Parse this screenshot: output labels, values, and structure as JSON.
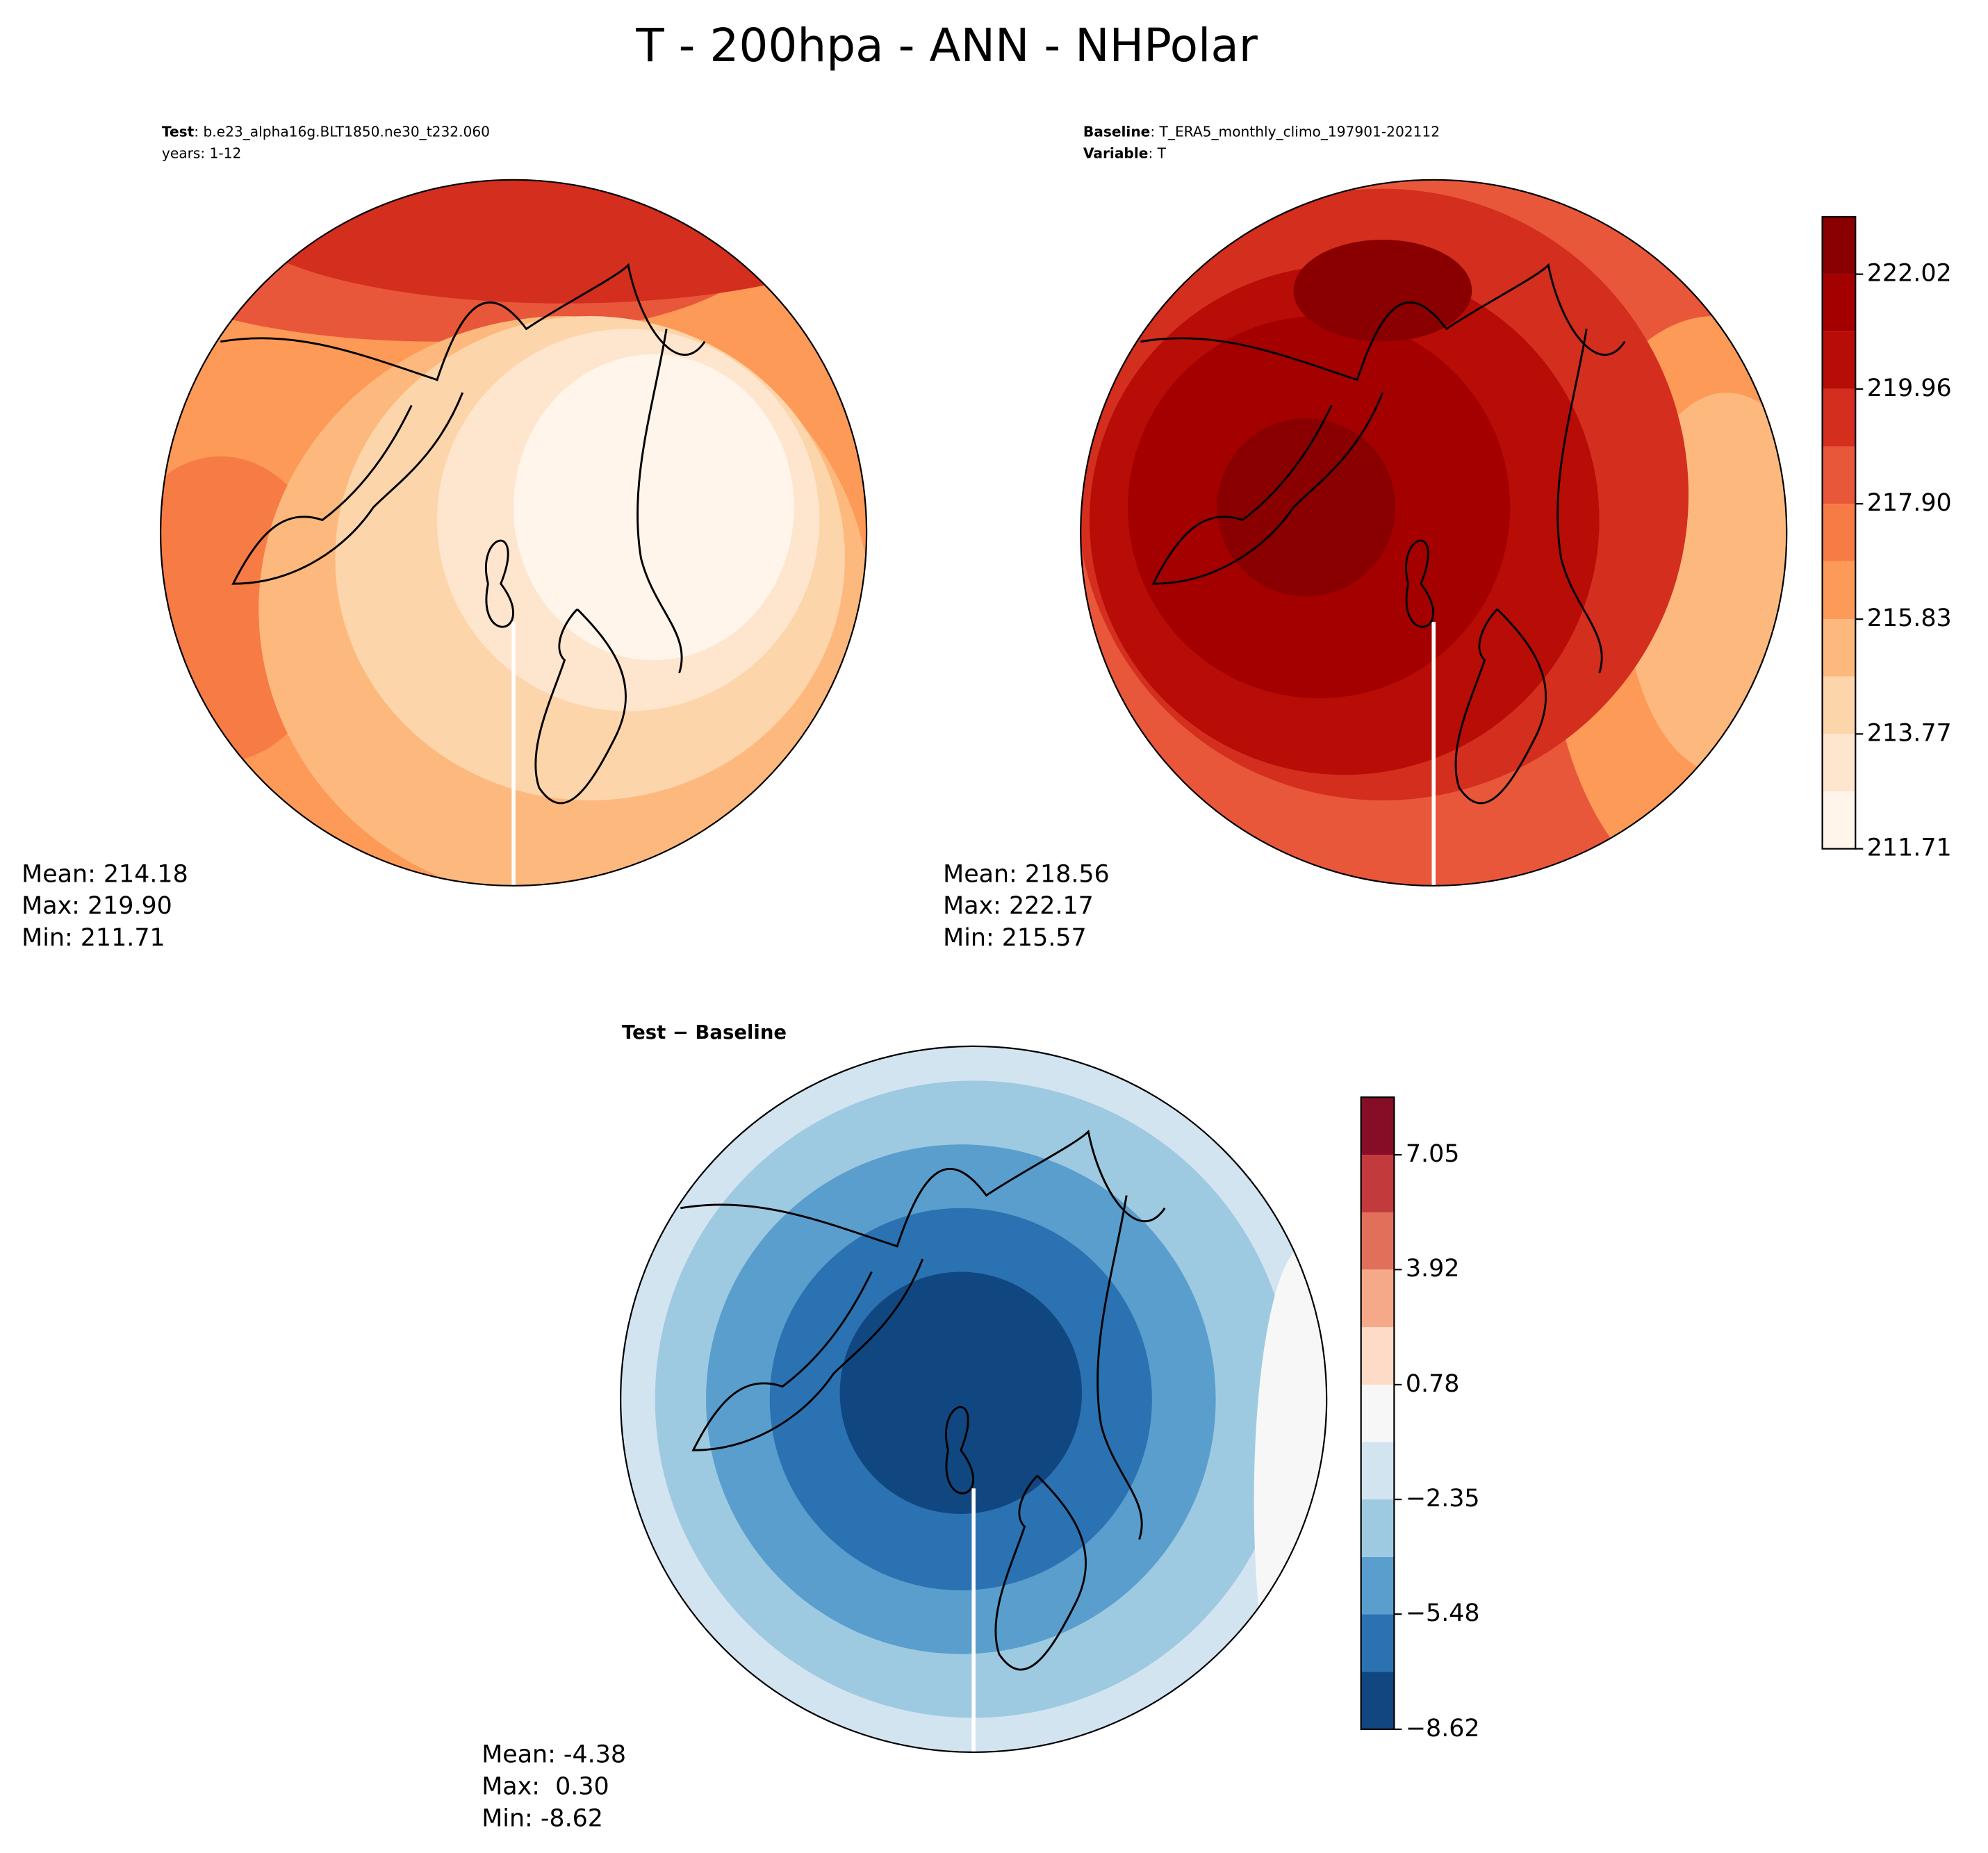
{
  "title": "T - 200hpa - ANN - NHPolar",
  "panels": [
    {
      "header": [
        {
          "label": "Test",
          "text": ": b.e23_alpha16g.BLT1850.ne30_t232.060"
        },
        {
          "label": "",
          "text": "years: 1-12"
        }
      ],
      "stats": [
        "Mean: 214.18",
        "Max: 219.90",
        "Min: 211.71"
      ]
    },
    {
      "header": [
        {
          "label": "Baseline",
          "text": ": T_ERA5_monthly_climo_197901-202112"
        },
        {
          "label": "Variable",
          "text": ": T"
        }
      ],
      "stats": [
        "Mean: 218.56",
        "Max: 222.17",
        "Min: 215.57"
      ]
    },
    {
      "header": [
        {
          "label": "Test − Baseline",
          "text": ""
        }
      ],
      "stats": [
        "Mean: -4.38",
        "Max:  0.30",
        "Min: -8.62"
      ]
    }
  ],
  "colorbars": [
    {
      "levels": [
        211.71,
        212.74,
        213.77,
        214.8,
        215.83,
        216.87,
        217.9,
        218.93,
        219.96,
        220.99,
        222.02,
        223.05
      ],
      "colors": [
        "#fff5eb",
        "#fee6ce",
        "#fdd5ab",
        "#fdb97d",
        "#fd9a58",
        "#f77b45",
        "#e9573a",
        "#d32e1e",
        "#b80c06",
        "#a50000",
        "#8a0000"
      ],
      "ticks": [
        211.71,
        213.77,
        215.83,
        {
          "value": 217.9,
          "label": "217.90"
        },
        219.96,
        222.02
      ]
    },
    {
      "levels": [
        -8.62,
        -7.05,
        -5.48,
        -3.92,
        -2.35,
        -0.78,
        0.78,
        2.35,
        3.92,
        5.48,
        7.05,
        8.62
      ],
      "colors": [
        "#114781",
        "#2b72b2",
        "#5a9ecd",
        "#9ecae1",
        "#d3e4f1",
        "#f7f7f7",
        "#fddbc7",
        "#f5a988",
        "#e0705a",
        "#c23a3b",
        "#850d25"
      ],
      "ticks": [
        {
          "value": -8.62,
          "label": "−8.62"
        },
        {
          "value": -5.48,
          "label": "−5.48"
        },
        {
          "value": -2.35,
          "label": "−2.35"
        },
        0.78,
        3.92,
        7.05
      ]
    }
  ]
}
